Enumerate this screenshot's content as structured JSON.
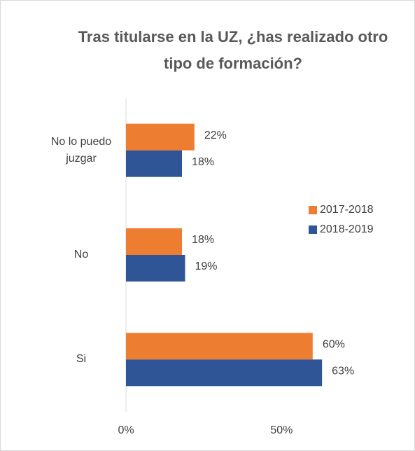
{
  "chart_data": {
    "type": "bar",
    "orientation": "horizontal",
    "title": "Tras titularse en la UZ, ¿has realizado otro tipo de formación?",
    "categories": [
      "No lo puedo juzgar",
      "No",
      "Si"
    ],
    "series": [
      {
        "name": "2017-2018",
        "color": "#ED7D31",
        "values": [
          22,
          18,
          60
        ],
        "value_labels": [
          "22%",
          "18%",
          "60%"
        ]
      },
      {
        "name": "2018-2019",
        "color": "#2F5597",
        "values": [
          18,
          19,
          63
        ],
        "value_labels": [
          "18%",
          "19%",
          "63%"
        ]
      }
    ],
    "xlim": [
      0,
      85
    ],
    "xticks": [
      {
        "value": 0,
        "label": "0%"
      },
      {
        "value": 50,
        "label": "50%"
      }
    ],
    "legend": "right"
  }
}
